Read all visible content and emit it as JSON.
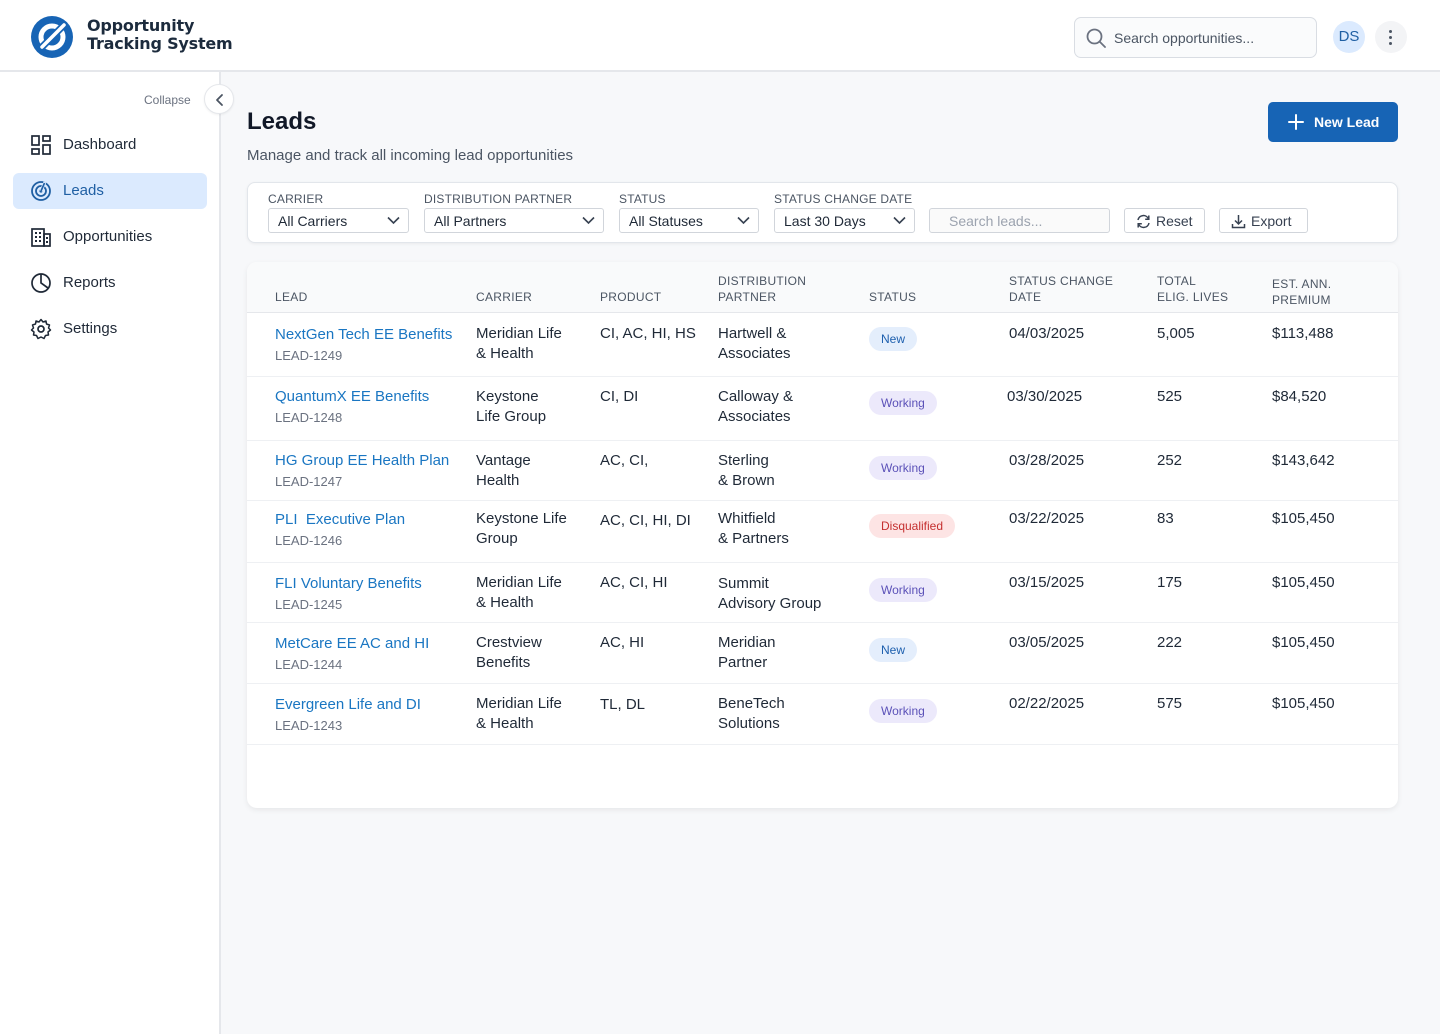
{
  "app": {
    "logo_line1": "Opportunity",
    "logo_line2": "Tracking System",
    "search_placeholder": "Search opportunities...",
    "avatar_initials": "DS"
  },
  "sidebar": {
    "collapse_label": "Collapse",
    "items": [
      {
        "label": "Dashboard",
        "icon": "dashboard-icon"
      },
      {
        "label": "Leads",
        "icon": "leads-icon",
        "active": true
      },
      {
        "label": "Opportunities",
        "icon": "building-icon"
      },
      {
        "label": "Reports",
        "icon": "pie-chart-icon"
      },
      {
        "label": "Settings",
        "icon": "gear-icon"
      }
    ]
  },
  "page": {
    "title": "Leads",
    "subtitle": "Manage and track all incoming lead opportunities",
    "new_button": "New Lead"
  },
  "filters": {
    "carrier": {
      "label": "CARRIER",
      "value": "All Carriers"
    },
    "partner": {
      "label": "DISTRIBUTION PARTNER",
      "value": "All Partners"
    },
    "status": {
      "label": "STATUS",
      "value": "All Statuses"
    },
    "date": {
      "label": "STATUS CHANGE DATE",
      "value": "Last 30 Days"
    },
    "search_placeholder": "Search leads...",
    "reset": "Reset",
    "export": "Export"
  },
  "table": {
    "headers": {
      "lead": "LEAD",
      "carrier": "CARRIER",
      "product": "PRODUCT",
      "partner_1": "DISTRIBUTION",
      "partner_2": "PARTNER",
      "status": "STATUS",
      "date_1": "STATUS CHANGE",
      "date_2": "DATE",
      "lives_1": "TOTAL",
      "lives_2": "ELIG. LIVES",
      "premium_1": "EST. ANN.",
      "premium_2": "PREMIUM"
    },
    "rows": [
      {
        "name": "NextGen Tech EE Benefits",
        "id": "LEAD-1249",
        "carrier_1": "Meridian Life",
        "carrier_2": "& Health",
        "product": "CI, AC, HI, HS",
        "partner_1": "Hartwell &",
        "partner_2": "Associates",
        "status": "New",
        "date": "04/03/2025",
        "lives": "5,005",
        "premium": "$113,488"
      },
      {
        "name": "QuantumX EE Benefits",
        "id": "LEAD-1248",
        "carrier_1": "Keystone",
        "carrier_2": "Life Group",
        "product": "CI, DI",
        "partner_1": "Calloway &",
        "partner_2": "Associates",
        "status": "Working",
        "date": "03/30/2025",
        "lives": "525",
        "premium": "$84,520"
      },
      {
        "name": "HG Group EE Health Plan",
        "id": "LEAD-1247",
        "carrier_1": "Vantage",
        "carrier_2": "Health",
        "product": "AC, CI,",
        "partner_1": "Sterling",
        "partner_2": "& Brown",
        "status": "Working",
        "date": "03/28/2025",
        "lives": "252",
        "premium": "$143,642"
      },
      {
        "name": "PLI  Executive Plan",
        "id": "LEAD-1246",
        "carrier_1": "Keystone Life",
        "carrier_2": "Group",
        "product": "AC, CI, HI, DI",
        "partner_1": "Whitfield",
        "partner_2": "& Partners",
        "status": "Disqualified",
        "date": "03/22/2025",
        "lives": "83",
        "premium": "$105,450"
      },
      {
        "name": "FLI Voluntary Benefits",
        "id": "LEAD-1245",
        "carrier_1": "Meridian Life",
        "carrier_2": "& Health",
        "product": "AC, CI, HI",
        "partner_1": "Summit",
        "partner_2": "Advisory Group",
        "status": "Working",
        "date": "03/15/2025",
        "lives": "175",
        "premium": "$105,450"
      },
      {
        "name": "MetCare EE AC and HI",
        "id": "LEAD-1244",
        "carrier_1": "Crestview",
        "carrier_2": "Benefits",
        "product": "AC, HI",
        "partner_1": "Meridian",
        "partner_2": "Partner",
        "status": "New",
        "date": "03/05/2025",
        "lives": "222",
        "premium": "$105,450"
      },
      {
        "name": "Evergreen Life and DI",
        "id": "LEAD-1243",
        "carrier_1": "Meridian Life",
        "carrier_2": "& Health",
        "product": "TL, DL",
        "partner_1": "BeneTech",
        "partner_2": "Solutions",
        "status": "Working",
        "date": "02/22/2025",
        "lives": "575",
        "premium": "$105,450"
      }
    ]
  },
  "colors": {
    "brand": "#1764b5",
    "link": "#1a76c2",
    "status_new": "#e4eefc",
    "status_working": "#ece9fb",
    "status_disqualified": "#fde4e4"
  }
}
